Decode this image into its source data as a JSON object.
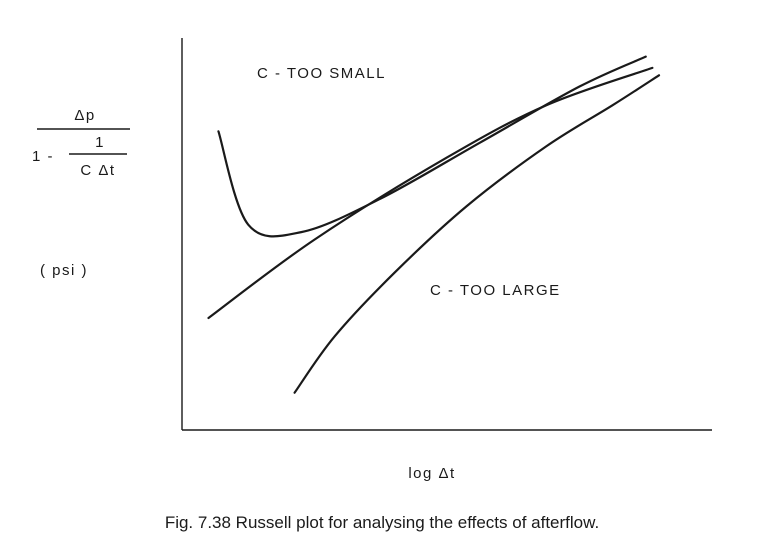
{
  "chart_data": {
    "type": "line",
    "title": "",
    "xlabel": "log Δt",
    "ylabel": {
      "numerator": "Δp",
      "denominator_lead": "1 -",
      "denominator_fraction_numerator": "1",
      "denominator_fraction_denominator": "C Δt",
      "unit": "( psi )"
    },
    "grid": false,
    "legend": "none",
    "annotations": [
      {
        "text": "C - TOO  SMALL"
      },
      {
        "text": "C - TOO LARGE"
      }
    ],
    "series": [
      {
        "points": [
          [
            0.55,
            0.8
          ],
          [
            1.0,
            0.55
          ],
          [
            1.8,
            0.53
          ],
          [
            3.0,
            0.62
          ],
          [
            4.5,
            0.77
          ],
          [
            6.0,
            0.92
          ],
          [
            7.0,
            1.0
          ]
        ]
      },
      {
        "points": [
          [
            0.4,
            0.3
          ],
          [
            2.0,
            0.51
          ],
          [
            4.0,
            0.73
          ],
          [
            5.5,
            0.87
          ],
          [
            7.1,
            0.97
          ]
        ]
      },
      {
        "points": [
          [
            1.7,
            0.1
          ],
          [
            2.3,
            0.25
          ],
          [
            3.2,
            0.42
          ],
          [
            4.3,
            0.6
          ],
          [
            5.5,
            0.76
          ],
          [
            6.5,
            0.87
          ],
          [
            7.2,
            0.95
          ]
        ]
      }
    ],
    "xlim": [
      0,
      8
    ],
    "ylim": [
      0,
      1.05
    ]
  },
  "caption": {
    "text": "Fig. 7.38  Russell plot for analysing the effects of afterflow."
  }
}
